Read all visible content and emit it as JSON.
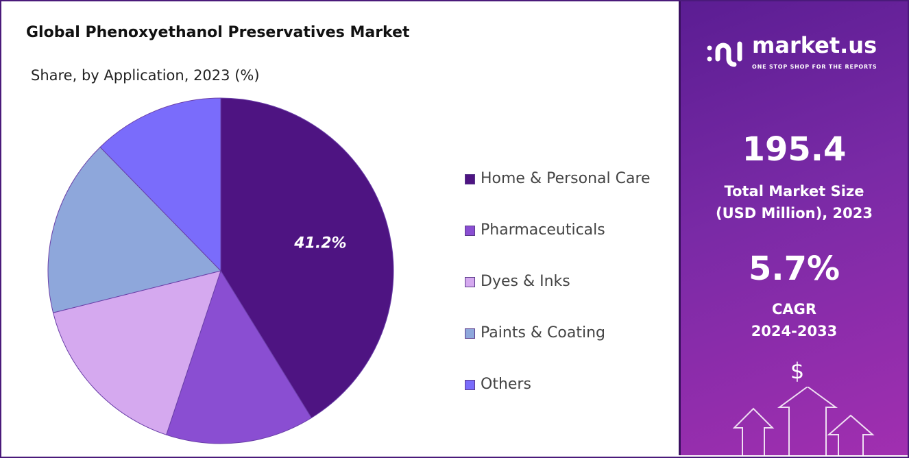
{
  "header": {
    "title": "Global Phenoxyethanol Preservatives Market",
    "subtitle": "Share, by Application, 2023 (%)"
  },
  "chart_data": {
    "type": "pie",
    "title": "Global Phenoxyethanol Preservatives Market",
    "subtitle": "Share, by Application, 2023 (%)",
    "categories": [
      "Home & Personal Care",
      "Pharmaceuticals",
      "Dyes & Inks",
      "Paints & Coating",
      "Others"
    ],
    "values": [
      41.2,
      13.9,
      16.0,
      16.6,
      12.3
    ],
    "colors": [
      "#4e1482",
      "#8a4ed2",
      "#d5a9ef",
      "#8ea7db",
      "#7a6cfb"
    ],
    "data_labels": [
      "41.2%",
      "",
      "",
      "",
      ""
    ],
    "legend_position": "right",
    "start_angle": "top, clockwise"
  },
  "panel": {
    "logo_text": "market.us",
    "logo_tagline": "ONE STOP SHOP FOR THE REPORTS",
    "market_size": "195.4",
    "market_size_label_1": "Total Market Size",
    "market_size_label_2": "(USD Million), 2023",
    "cagr": "5.7%",
    "cagr_label_1": "CAGR",
    "cagr_label_2": "2024-2033",
    "dollar_symbol": "$"
  }
}
